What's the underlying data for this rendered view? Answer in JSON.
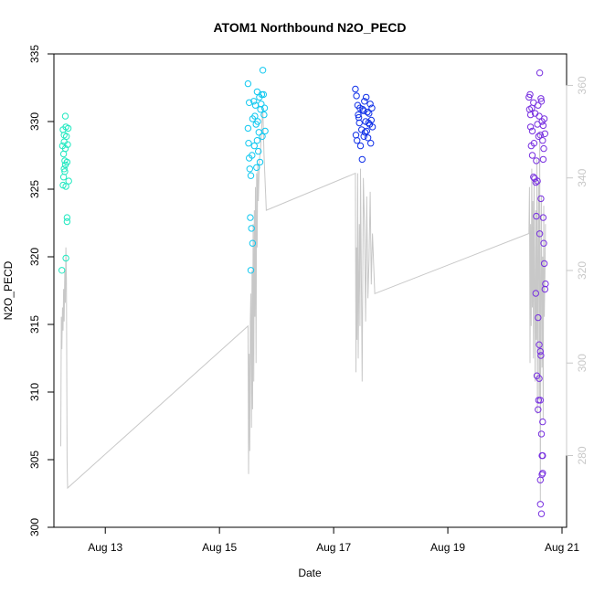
{
  "chart_data": {
    "type": "scatter",
    "title": "ATOM1 Northbound N2O_PECD",
    "xlabel": "Date",
    "ylabel": "N2O_PECD",
    "x_unit": "date (August)",
    "xlim": [
      12.1,
      21.08
    ],
    "ylim": [
      300,
      335
    ],
    "x_ticks": [
      13,
      15,
      17,
      19,
      21
    ],
    "x_tick_labels": [
      "Aug 13",
      "Aug 15",
      "Aug 17",
      "Aug 19",
      "Aug 21"
    ],
    "y_ticks": [
      300,
      305,
      310,
      315,
      320,
      325,
      330,
      335
    ],
    "y_tick_labels": [
      "300",
      "305",
      "310",
      "315",
      "320",
      "325",
      "330",
      "335"
    ],
    "y2lim": [
      264.5,
      366.8
    ],
    "y2_ticks": [
      280,
      300,
      320,
      340,
      360
    ],
    "y2_tick_labels": [
      "280",
      "300",
      "320",
      "340",
      "360"
    ],
    "grid": false,
    "legend": "none",
    "line_color": "#c8c8c8",
    "groups": [
      {
        "color": "#20e8c0",
        "points": [
          {
            "x": 12.24,
            "y": 319.0
          },
          {
            "x": 12.26,
            "y": 325.3
          },
          {
            "x": 12.27,
            "y": 327.6
          },
          {
            "x": 12.25,
            "y": 328.2
          },
          {
            "x": 12.28,
            "y": 328.5
          },
          {
            "x": 12.26,
            "y": 329.4
          },
          {
            "x": 12.28,
            "y": 329.0
          },
          {
            "x": 12.3,
            "y": 330.4
          },
          {
            "x": 12.31,
            "y": 329.6
          },
          {
            "x": 12.32,
            "y": 328.9
          },
          {
            "x": 12.29,
            "y": 327.1
          },
          {
            "x": 12.3,
            "y": 326.8
          },
          {
            "x": 12.29,
            "y": 326.3
          },
          {
            "x": 12.31,
            "y": 325.2
          },
          {
            "x": 12.33,
            "y": 322.9
          },
          {
            "x": 12.33,
            "y": 322.6
          },
          {
            "x": 12.31,
            "y": 319.9
          },
          {
            "x": 12.34,
            "y": 328.3
          },
          {
            "x": 12.27,
            "y": 325.9
          },
          {
            "x": 12.3,
            "y": 328.0
          },
          {
            "x": 12.36,
            "y": 325.6
          },
          {
            "x": 12.33,
            "y": 327.0
          },
          {
            "x": 12.28,
            "y": 326.5
          },
          {
            "x": 12.35,
            "y": 329.5
          }
        ]
      },
      {
        "color": "#10c8f0",
        "points": [
          {
            "x": 15.5,
            "y": 332.8
          },
          {
            "x": 15.52,
            "y": 331.4
          },
          {
            "x": 15.5,
            "y": 329.5
          },
          {
            "x": 15.51,
            "y": 328.4
          },
          {
            "x": 15.52,
            "y": 327.3
          },
          {
            "x": 15.53,
            "y": 326.5
          },
          {
            "x": 15.55,
            "y": 326.0
          },
          {
            "x": 15.54,
            "y": 322.9
          },
          {
            "x": 15.56,
            "y": 322.1
          },
          {
            "x": 15.58,
            "y": 321.0
          },
          {
            "x": 15.55,
            "y": 319.0
          },
          {
            "x": 15.6,
            "y": 331.5
          },
          {
            "x": 15.62,
            "y": 330.4
          },
          {
            "x": 15.64,
            "y": 329.8
          },
          {
            "x": 15.66,
            "y": 328.6
          },
          {
            "x": 15.68,
            "y": 327.8
          },
          {
            "x": 15.7,
            "y": 331.8
          },
          {
            "x": 15.72,
            "y": 330.9
          },
          {
            "x": 15.74,
            "y": 332.0
          },
          {
            "x": 15.76,
            "y": 333.8
          },
          {
            "x": 15.78,
            "y": 330.5
          },
          {
            "x": 15.8,
            "y": 329.3
          },
          {
            "x": 15.63,
            "y": 331.2
          },
          {
            "x": 15.67,
            "y": 330.0
          },
          {
            "x": 15.71,
            "y": 327.0
          },
          {
            "x": 15.75,
            "y": 328.9
          },
          {
            "x": 15.58,
            "y": 330.2
          },
          {
            "x": 15.61,
            "y": 328.2
          },
          {
            "x": 15.69,
            "y": 329.2
          },
          {
            "x": 15.73,
            "y": 331.3
          },
          {
            "x": 15.77,
            "y": 332.0
          },
          {
            "x": 15.65,
            "y": 326.6
          },
          {
            "x": 15.79,
            "y": 331.0
          },
          {
            "x": 15.57,
            "y": 327.5
          },
          {
            "x": 15.66,
            "y": 332.2
          }
        ]
      },
      {
        "color": "#1030e8",
        "points": [
          {
            "x": 17.38,
            "y": 332.4
          },
          {
            "x": 17.4,
            "y": 331.9
          },
          {
            "x": 17.42,
            "y": 331.2
          },
          {
            "x": 17.39,
            "y": 329.0
          },
          {
            "x": 17.41,
            "y": 328.6
          },
          {
            "x": 17.43,
            "y": 330.5
          },
          {
            "x": 17.45,
            "y": 329.9
          },
          {
            "x": 17.47,
            "y": 328.2
          },
          {
            "x": 17.5,
            "y": 327.2
          },
          {
            "x": 17.52,
            "y": 330.8
          },
          {
            "x": 17.54,
            "y": 331.5
          },
          {
            "x": 17.56,
            "y": 330.0
          },
          {
            "x": 17.58,
            "y": 329.3
          },
          {
            "x": 17.6,
            "y": 328.8
          },
          {
            "x": 17.62,
            "y": 330.6
          },
          {
            "x": 17.64,
            "y": 331.3
          },
          {
            "x": 17.66,
            "y": 330.1
          },
          {
            "x": 17.68,
            "y": 329.6
          },
          {
            "x": 17.46,
            "y": 331.0
          },
          {
            "x": 17.49,
            "y": 329.4
          },
          {
            "x": 17.53,
            "y": 328.9
          },
          {
            "x": 17.57,
            "y": 331.8
          },
          {
            "x": 17.61,
            "y": 329.9
          },
          {
            "x": 17.65,
            "y": 328.4
          },
          {
            "x": 17.44,
            "y": 330.3
          },
          {
            "x": 17.51,
            "y": 330.9
          },
          {
            "x": 17.55,
            "y": 329.2
          },
          {
            "x": 17.59,
            "y": 330.7
          },
          {
            "x": 17.63,
            "y": 329.8
          },
          {
            "x": 17.67,
            "y": 331.0
          }
        ]
      },
      {
        "color": "#7830e0",
        "points": [
          {
            "x": 20.42,
            "y": 331.8
          },
          {
            "x": 20.44,
            "y": 332.0
          },
          {
            "x": 20.43,
            "y": 330.9
          },
          {
            "x": 20.45,
            "y": 329.6
          },
          {
            "x": 20.46,
            "y": 328.2
          },
          {
            "x": 20.48,
            "y": 327.5
          },
          {
            "x": 20.5,
            "y": 325.9
          },
          {
            "x": 20.52,
            "y": 325.8
          },
          {
            "x": 20.54,
            "y": 325.5
          },
          {
            "x": 20.55,
            "y": 323.0
          },
          {
            "x": 20.58,
            "y": 331.2
          },
          {
            "x": 20.6,
            "y": 330.4
          },
          {
            "x": 20.62,
            "y": 329.0
          },
          {
            "x": 20.61,
            "y": 333.6
          },
          {
            "x": 20.63,
            "y": 331.7
          },
          {
            "x": 20.65,
            "y": 330.0
          },
          {
            "x": 20.67,
            "y": 329.7
          },
          {
            "x": 20.66,
            "y": 328.6
          },
          {
            "x": 20.56,
            "y": 311.2
          },
          {
            "x": 20.58,
            "y": 308.7
          },
          {
            "x": 20.59,
            "y": 309.4
          },
          {
            "x": 20.6,
            "y": 313.5
          },
          {
            "x": 20.62,
            "y": 313.0
          },
          {
            "x": 20.63,
            "y": 312.7
          },
          {
            "x": 20.64,
            "y": 306.9
          },
          {
            "x": 20.65,
            "y": 305.3
          },
          {
            "x": 20.66,
            "y": 304.0
          },
          {
            "x": 20.62,
            "y": 301.7
          },
          {
            "x": 20.64,
            "y": 301.0
          },
          {
            "x": 20.66,
            "y": 305.3
          },
          {
            "x": 20.7,
            "y": 317.6
          },
          {
            "x": 20.69,
            "y": 319.5
          },
          {
            "x": 20.68,
            "y": 321.0
          },
          {
            "x": 20.71,
            "y": 318.0
          },
          {
            "x": 20.62,
            "y": 309.4
          },
          {
            "x": 20.65,
            "y": 303.9
          },
          {
            "x": 20.5,
            "y": 331.4
          },
          {
            "x": 20.53,
            "y": 330.6
          },
          {
            "x": 20.57,
            "y": 329.8
          },
          {
            "x": 20.59,
            "y": 328.9
          },
          {
            "x": 20.64,
            "y": 331.5
          },
          {
            "x": 20.69,
            "y": 330.2
          },
          {
            "x": 20.48,
            "y": 329.3
          },
          {
            "x": 20.51,
            "y": 328.4
          },
          {
            "x": 20.55,
            "y": 327.1
          },
          {
            "x": 20.57,
            "y": 325.6
          },
          {
            "x": 20.63,
            "y": 324.3
          },
          {
            "x": 20.67,
            "y": 322.9
          },
          {
            "x": 20.61,
            "y": 321.7
          },
          {
            "x": 20.66,
            "y": 307.8
          },
          {
            "x": 20.6,
            "y": 311.0
          },
          {
            "x": 20.45,
            "y": 330.5
          },
          {
            "x": 20.47,
            "y": 331.0
          },
          {
            "x": 20.68,
            "y": 328.0
          },
          {
            "x": 20.7,
            "y": 329.1
          },
          {
            "x": 20.54,
            "y": 317.3
          },
          {
            "x": 20.58,
            "y": 315.5
          },
          {
            "x": 20.62,
            "y": 303.5
          },
          {
            "x": 20.67,
            "y": 327.2
          }
        ]
      }
    ],
    "line_series": {
      "name": "secondary (right axis)",
      "x": [
        12.22,
        12.23,
        12.24,
        12.25,
        12.26,
        12.27,
        12.28,
        12.29,
        12.3,
        12.31,
        12.32,
        12.33,
        12.34,
        15.5,
        15.51,
        15.52,
        15.53,
        15.54,
        15.55,
        15.56,
        15.57,
        15.58,
        15.59,
        15.6,
        15.61,
        15.62,
        15.63,
        15.64,
        15.65,
        15.66,
        15.67,
        15.68,
        15.7,
        15.72,
        15.74,
        15.76,
        15.78,
        15.82,
        17.38,
        17.39,
        17.4,
        17.41,
        17.42,
        17.43,
        17.44,
        17.45,
        17.46,
        17.47,
        17.48,
        17.5,
        17.52,
        17.54,
        17.56,
        17.58,
        17.6,
        17.62,
        17.64,
        17.66,
        17.68,
        17.72,
        20.42,
        20.43,
        20.44,
        20.45,
        20.46,
        20.47,
        20.48,
        20.49,
        20.5,
        20.51,
        20.52,
        20.53,
        20.54,
        20.55,
        20.56,
        20.57,
        20.58,
        20.59,
        20.6,
        20.61,
        20.62,
        20.63,
        20.64,
        20.65,
        20.66,
        20.67,
        20.68,
        20.69,
        20.7,
        20.71
      ],
      "y": [
        282,
        310,
        303,
        312,
        307,
        316,
        309,
        320,
        313,
        325,
        318,
        279,
        273,
        308,
        276,
        302,
        281,
        309,
        315,
        286,
        320,
        290,
        330,
        296,
        333,
        310,
        338,
        300,
        341,
        325,
        343,
        335,
        344,
        346,
        351,
        355,
        345,
        333,
        341,
        298,
        325,
        305,
        341,
        301,
        316,
        330,
        308,
        342,
        327,
        296,
        340,
        330,
        309,
        336,
        314,
        322,
        337,
        317,
        328,
        315,
        328,
        338,
        300,
        330,
        308,
        342,
        312,
        335,
        301,
        340,
        318,
        296,
        333,
        305,
        344,
        289,
        326,
        339,
        292,
        350,
        270,
        318,
        336,
        299,
        323,
        288,
        334,
        310,
        319,
        330
      ]
    }
  }
}
